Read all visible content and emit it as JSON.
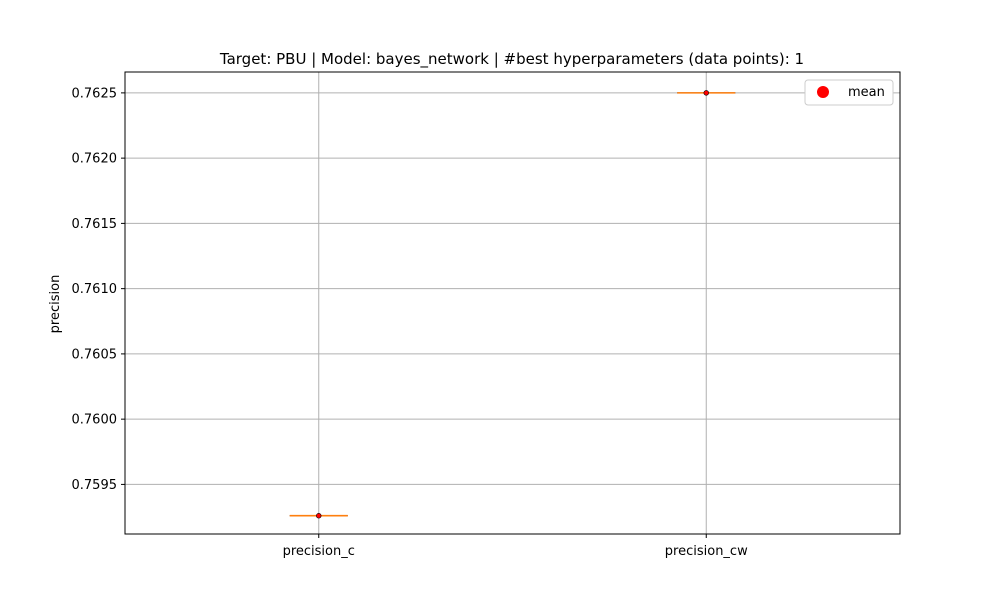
{
  "chart_data": {
    "type": "box",
    "title": "Target: PBU | Model: bayes_network | #best hyperparameters (data points): 1",
    "xlabel": "",
    "ylabel": "precision",
    "categories": [
      "precision_c",
      "precision_cw"
    ],
    "values": [
      0.75926,
      0.7625
    ],
    "means": [
      0.75926,
      0.7625
    ],
    "ylim": [
      0.75912,
      0.76266
    ],
    "yticks": [
      0.7595,
      0.76,
      0.7605,
      0.761,
      0.7615,
      0.762,
      0.7625
    ],
    "ytick_labels": [
      "0.7595",
      "0.7600",
      "0.7605",
      "0.7610",
      "0.7615",
      "0.7620",
      "0.7625"
    ],
    "grid": true,
    "legend": {
      "placement": "top-right",
      "entries": [
        "mean"
      ]
    },
    "colors": {
      "median": "#ff7f0e",
      "box": "#000000",
      "mean": "#ff0000",
      "grid": "#b0b0b0"
    }
  }
}
